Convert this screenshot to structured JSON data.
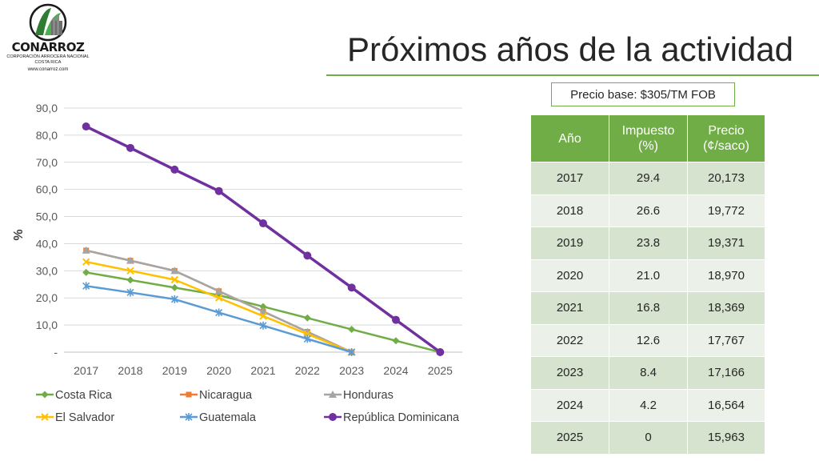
{
  "logo": {
    "name": "CONARROZ",
    "subtitle": "CORPORACIÓN ARROCERA NACIONAL",
    "country": "COSTA RICA",
    "url": "www.conarroz.com"
  },
  "title": "Próximos años de la actividad",
  "price_base": "Precio base: $305/TM FOB",
  "colors": {
    "accent": "#70ad47"
  },
  "table": {
    "headers": [
      "Año",
      "Impuesto (%)",
      "Precio (¢/saco)"
    ],
    "rows": [
      [
        "2017",
        "29.4",
        "20,173"
      ],
      [
        "2018",
        "26.6",
        "19,772"
      ],
      [
        "2019",
        "23.8",
        "19,371"
      ],
      [
        "2020",
        "21.0",
        "18,970"
      ],
      [
        "2021",
        "16.8",
        "18,369"
      ],
      [
        "2022",
        "12.6",
        "17,767"
      ],
      [
        "2023",
        "8.4",
        "17,166"
      ],
      [
        "2024",
        "4.2",
        "16,564"
      ],
      [
        "2025",
        "0",
        "15,963"
      ]
    ]
  },
  "chart_data": {
    "type": "line",
    "title": "",
    "xlabel": "",
    "ylabel": "%",
    "ylim": [
      0,
      90
    ],
    "yticks": [
      "-",
      "10,0",
      "20,0",
      "30,0",
      "40,0",
      "50,0",
      "60,0",
      "70,0",
      "80,0",
      "90,0"
    ],
    "x": [
      "2017",
      "2018",
      "2019",
      "2020",
      "2021",
      "2022",
      "2023",
      "2024",
      "2025"
    ],
    "grid": true,
    "legend_position": "bottom",
    "series": [
      {
        "name": "Costa Rica",
        "color": "#70ad47",
        "marker": "diamond",
        "values": [
          29.4,
          26.6,
          23.8,
          21.0,
          16.8,
          12.6,
          8.4,
          4.2,
          0
        ]
      },
      {
        "name": "Nicaragua",
        "color": "#ed7d31",
        "marker": "square",
        "values": [
          37.5,
          33.75,
          30.0,
          22.5,
          15.0,
          7.5,
          0,
          null,
          null
        ]
      },
      {
        "name": "Honduras",
        "color": "#a5a5a5",
        "marker": "triangle",
        "values": [
          37.5,
          33.75,
          30.0,
          22.5,
          15.0,
          7.5,
          0,
          null,
          null
        ]
      },
      {
        "name": "El Salvador",
        "color": "#ffc000",
        "marker": "x",
        "values": [
          33.3,
          30.0,
          26.7,
          20.0,
          13.3,
          6.7,
          0,
          null,
          null
        ]
      },
      {
        "name": "Guatemala",
        "color": "#5b9bd5",
        "marker": "star",
        "values": [
          24.4,
          22.0,
          19.5,
          14.6,
          9.8,
          4.9,
          0,
          null,
          null
        ]
      },
      {
        "name": "República Dominicana",
        "color": "#7030a0",
        "marker": "circle",
        "values": [
          83.2,
          75.3,
          67.3,
          59.4,
          47.5,
          35.6,
          23.8,
          11.9,
          0
        ]
      }
    ]
  }
}
